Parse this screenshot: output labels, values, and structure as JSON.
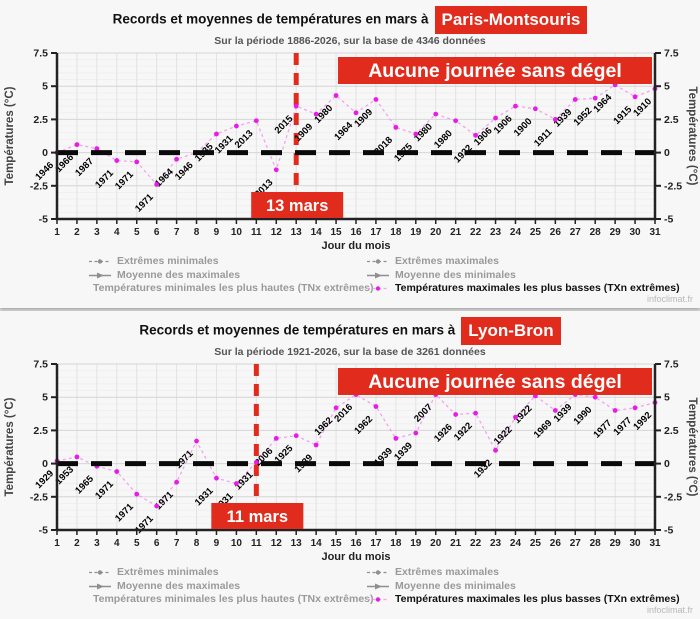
{
  "colors": {
    "red": "#e02b1d",
    "magenta": "#e71ce7",
    "line_magenta": "#f2a3ef",
    "zero_line": "#0a0a0a",
    "axis": "#222222"
  },
  "chart_data": [
    {
      "type": "line",
      "title_prefix": "Records et moyennes de températures en mars à",
      "station": "Paris-Montsouris",
      "subtitle": "Sur la période 1886-2026, sur la base de 4346 données",
      "xlabel": "Jour du mois",
      "ylabel": "Températures (°C)",
      "ylim": [
        -5,
        7.5
      ],
      "yticks": [
        7.5,
        5,
        2.5,
        0,
        -2.5,
        -5
      ],
      "x": [
        1,
        2,
        3,
        4,
        5,
        6,
        7,
        8,
        9,
        10,
        11,
        12,
        13,
        14,
        15,
        16,
        17,
        18,
        19,
        20,
        21,
        22,
        23,
        24,
        25,
        26,
        27,
        28,
        29,
        30,
        31
      ],
      "series": [
        {
          "name": "Températures maximales les plus basses (TXn extrêmes)",
          "values": [
            0.0,
            0.6,
            0.3,
            -0.6,
            -0.7,
            -2.4,
            -0.5,
            0.0,
            1.4,
            2.0,
            2.4,
            -1.3,
            3.5,
            2.9,
            4.3,
            3.0,
            4.0,
            1.9,
            1.4,
            2.9,
            2.4,
            1.3,
            2.6,
            3.5,
            3.3,
            2.5,
            4.0,
            4.1,
            5.1,
            4.2,
            4.8
          ],
          "years": [
            "1946",
            "1966",
            "1987",
            "1971",
            "1971",
            "1971",
            "1964",
            "1946",
            "1935",
            "1931",
            "2013",
            "2013",
            "2015",
            "1909",
            "1980",
            "1964",
            "1909",
            "2018",
            "1975",
            "1980",
            "1980",
            "1922",
            "1906",
            "1906",
            "1900",
            "1911",
            "1939",
            "1952",
            "1964",
            "1915",
            "1910"
          ]
        }
      ],
      "annotations": {
        "banner": "Aucune journée sans dégel",
        "vline_day": 13,
        "vline_label": "13 mars"
      },
      "watermark": "infoclimat.fr"
    },
    {
      "type": "line",
      "title_prefix": "Records et moyennes de températures en mars à",
      "station": "Lyon-Bron",
      "subtitle": "Sur la période 1921-2026, sur la base de 3261 données",
      "xlabel": "Jour du mois",
      "ylabel": "Températures (°C)",
      "ylim": [
        -5,
        7.5
      ],
      "yticks": [
        7.5,
        5,
        2.5,
        0,
        -2.5,
        -5
      ],
      "x": [
        1,
        2,
        3,
        4,
        5,
        6,
        7,
        8,
        9,
        10,
        11,
        12,
        13,
        14,
        15,
        16,
        17,
        18,
        19,
        20,
        21,
        22,
        23,
        24,
        25,
        26,
        27,
        28,
        29,
        30,
        31
      ],
      "series": [
        {
          "name": "Températures maximales les plus basses (TXn extrêmes)",
          "values": [
            0.2,
            0.5,
            -0.2,
            -0.6,
            -2.3,
            -3.2,
            -1.4,
            1.7,
            -1.1,
            -1.5,
            0.1,
            1.9,
            2.1,
            1.4,
            4.2,
            5.2,
            4.3,
            1.9,
            2.3,
            5.2,
            3.7,
            3.8,
            1.0,
            3.5,
            5.1,
            4.0,
            5.2,
            5.0,
            4.0,
            4.2,
            4.6
          ],
          "years": [
            "1929",
            "1953",
            "1965",
            "1971",
            "1971",
            "1971",
            "1971",
            "1971",
            "1931",
            "1931",
            "1931",
            "2006",
            "1925",
            "1939",
            "1962",
            "2016",
            "1962",
            "1939",
            "1939",
            "2007",
            "1926",
            "1922",
            "1932",
            "1922",
            "1922",
            "1969",
            "1939",
            "1990",
            "1977",
            "1977",
            "1992"
          ]
        }
      ],
      "annotations": {
        "banner": "Aucune journée sans dégel",
        "vline_day": 11,
        "vline_label": "11 mars"
      },
      "watermark": "infoclimat.fr"
    }
  ],
  "legend": {
    "columns": [
      {
        "items": [
          {
            "label": "Extrêmes minimales",
            "marker": "dot-dash",
            "active": false
          },
          {
            "label": "Moyenne des maximales",
            "marker": "arrow",
            "active": false
          },
          {
            "label": "Températures minimales les plus hautes (TNx extrêmes)",
            "marker": "dot-dash",
            "active": false
          }
        ]
      },
      {
        "items": [
          {
            "label": "Extrêmes maximales",
            "marker": "dot-dash",
            "active": false
          },
          {
            "label": "Moyenne des minimales",
            "marker": "arrow",
            "active": false
          },
          {
            "label": "Températures maximales les plus basses (TXn extrêmes)",
            "marker": "dot-dash",
            "active": true
          }
        ]
      }
    ]
  }
}
